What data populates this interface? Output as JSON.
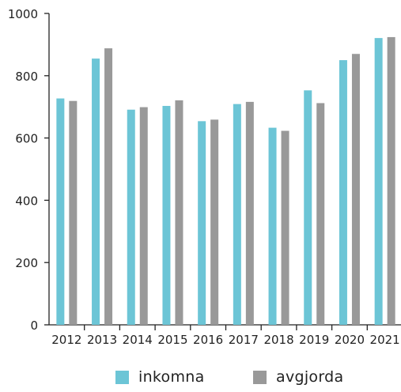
{
  "chart_data": {
    "type": "bar",
    "title": "",
    "xlabel": "",
    "ylabel": "",
    "categories": [
      "2012",
      "2013",
      "2014",
      "2015",
      "2016",
      "2017",
      "2018",
      "2019",
      "2020",
      "2021"
    ],
    "series": [
      {
        "name": "inkomna",
        "color": "#6cc5d6",
        "values": [
          727,
          855,
          691,
          703,
          654,
          709,
          633,
          753,
          850,
          921
        ]
      },
      {
        "name": "avgjorda",
        "color": "#999999",
        "values": [
          719,
          888,
          699,
          721,
          659,
          716,
          623,
          712,
          870,
          924
        ]
      }
    ],
    "ylim": [
      0,
      1000
    ],
    "yticks": [
      "0",
      "200",
      "400",
      "600",
      "800",
      "1000"
    ],
    "grid": false,
    "legend_position": "bottom"
  }
}
